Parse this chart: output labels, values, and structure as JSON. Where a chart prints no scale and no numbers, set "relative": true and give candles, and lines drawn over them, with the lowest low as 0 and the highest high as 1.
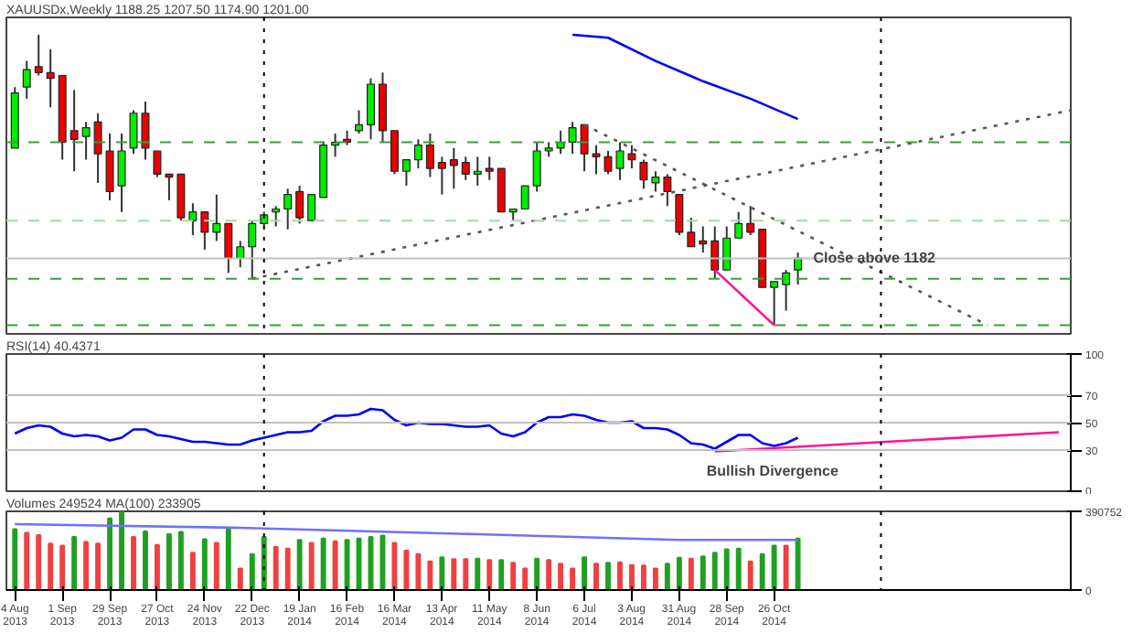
{
  "chart_data": [
    {
      "type": "candlestick",
      "title": "XAUUSDx,Weekly 1188.25 1207.50 1174.90 1201.00",
      "relative": true,
      "tick_labels": false,
      "xlim": [
        "2013-07-30",
        "2015-04-19"
      ],
      "x": [
        "2013-08-04",
        "2013-08-11",
        "2013-08-18",
        "2013-08-25",
        "2013-09-01",
        "2013-09-08",
        "2013-09-15",
        "2013-09-22",
        "2013-09-29",
        "2013-10-06",
        "2013-10-13",
        "2013-10-20",
        "2013-10-27",
        "2013-11-03",
        "2013-11-10",
        "2013-11-17",
        "2013-11-24",
        "2013-12-01",
        "2013-12-08",
        "2013-12-15",
        "2013-12-22",
        "2013-12-29",
        "2014-01-05",
        "2014-01-12",
        "2014-01-19",
        "2014-01-26",
        "2014-02-02",
        "2014-02-09",
        "2014-02-16",
        "2014-02-23",
        "2014-03-02",
        "2014-03-09",
        "2014-03-16",
        "2014-03-23",
        "2014-03-30",
        "2014-04-06",
        "2014-04-13",
        "2014-04-20",
        "2014-04-27",
        "2014-05-04",
        "2014-05-11",
        "2014-05-18",
        "2014-05-25",
        "2014-06-01",
        "2014-06-08",
        "2014-06-15",
        "2014-06-22",
        "2014-06-29",
        "2014-07-06",
        "2014-07-13",
        "2014-07-20",
        "2014-07-27",
        "2014-08-03",
        "2014-08-10",
        "2014-08-17",
        "2014-08-24",
        "2014-08-31",
        "2014-09-07",
        "2014-09-14",
        "2014-09-21",
        "2014-09-28",
        "2014-10-05",
        "2014-10-12",
        "2014-10-19",
        "2014-10-26",
        "2014-11-02",
        "2014-11-09"
      ],
      "ohlc": [
        [
          0.61,
          0.82,
          0.61,
          0.8
        ],
        [
          0.82,
          0.91,
          0.78,
          0.88
        ],
        [
          0.89,
          1,
          0.86,
          0.87
        ],
        [
          0.87,
          0.95,
          0.75,
          0.85
        ],
        [
          0.86,
          0.86,
          0.57,
          0.63
        ],
        [
          0.67,
          0.81,
          0.53,
          0.64
        ],
        [
          0.65,
          0.7,
          0.57,
          0.68
        ],
        [
          0.7,
          0.73,
          0.49,
          0.59
        ],
        [
          0.6,
          0.66,
          0.43,
          0.46
        ],
        [
          0.48,
          0.66,
          0.39,
          0.6
        ],
        [
          0.61,
          0.74,
          0.59,
          0.73
        ],
        [
          0.73,
          0.77,
          0.57,
          0.61
        ],
        [
          0.6,
          0.6,
          0.51,
          0.52
        ],
        [
          0.52,
          0.52,
          0.43,
          0.51
        ],
        [
          0.52,
          0.52,
          0.36,
          0.37
        ],
        [
          0.36,
          0.42,
          0.31,
          0.39
        ],
        [
          0.39,
          0.39,
          0.26,
          0.32
        ],
        [
          0.32,
          0.45,
          0.29,
          0.35
        ],
        [
          0.35,
          0.35,
          0.18,
          0.23
        ],
        [
          0.23,
          0.29,
          0.2,
          0.27
        ],
        [
          0.27,
          0.36,
          0.16,
          0.35
        ],
        [
          0.35,
          0.39,
          0.34,
          0.38
        ],
        [
          0.39,
          0.41,
          0.34,
          0.4
        ],
        [
          0.4,
          0.47,
          0.33,
          0.45
        ],
        [
          0.46,
          0.48,
          0.35,
          0.37
        ],
        [
          0.36,
          0.45,
          0.36,
          0.45
        ],
        [
          0.44,
          0.63,
          0.44,
          0.62
        ],
        [
          0.62,
          0.66,
          0.58,
          0.63
        ],
        [
          0.64,
          0.67,
          0.62,
          0.63
        ],
        [
          0.67,
          0.74,
          0.66,
          0.69
        ],
        [
          0.69,
          0.85,
          0.64,
          0.83
        ],
        [
          0.83,
          0.87,
          0.63,
          0.67
        ],
        [
          0.67,
          0.67,
          0.52,
          0.53
        ],
        [
          0.53,
          0.57,
          0.48,
          0.57
        ],
        [
          0.57,
          0.64,
          0.54,
          0.62
        ],
        [
          0.62,
          0.66,
          0.51,
          0.54
        ],
        [
          0.56,
          0.58,
          0.45,
          0.54
        ],
        [
          0.57,
          0.61,
          0.47,
          0.55
        ],
        [
          0.56,
          0.58,
          0.5,
          0.52
        ],
        [
          0.52,
          0.58,
          0.48,
          0.53
        ],
        [
          0.54,
          0.58,
          0.5,
          0.53
        ],
        [
          0.54,
          0.54,
          0.39,
          0.39
        ],
        [
          0.39,
          0.4,
          0.36,
          0.4
        ],
        [
          0.4,
          0.48,
          0.4,
          0.48
        ],
        [
          0.48,
          0.63,
          0.46,
          0.6
        ],
        [
          0.6,
          0.63,
          0.58,
          0.61
        ],
        [
          0.61,
          0.67,
          0.59,
          0.63
        ],
        [
          0.63,
          0.7,
          0.59,
          0.68
        ],
        [
          0.69,
          0.69,
          0.53,
          0.59
        ],
        [
          0.59,
          0.62,
          0.52,
          0.58
        ],
        [
          0.58,
          0.6,
          0.52,
          0.53
        ],
        [
          0.54,
          0.63,
          0.5,
          0.6
        ],
        [
          0.59,
          0.62,
          0.54,
          0.57
        ],
        [
          0.56,
          0.57,
          0.47,
          0.5
        ],
        [
          0.49,
          0.53,
          0.46,
          0.51
        ],
        [
          0.51,
          0.52,
          0.41,
          0.46
        ],
        [
          0.45,
          0.45,
          0.31,
          0.32
        ],
        [
          0.32,
          0.37,
          0.27,
          0.27
        ],
        [
          0.29,
          0.34,
          0.25,
          0.28
        ],
        [
          0.29,
          0.34,
          0.16,
          0.19
        ],
        [
          0.19,
          0.34,
          0.19,
          0.3
        ],
        [
          0.3,
          0.39,
          0.3,
          0.35
        ],
        [
          0.35,
          0.41,
          0.31,
          0.32
        ],
        [
          0.33,
          0.33,
          0.13,
          0.13
        ],
        [
          0.13,
          0.15,
          0,
          0.15
        ],
        [
          0.14,
          0.19,
          0.05,
          0.18
        ],
        [
          0.19,
          0.25,
          0.14,
          0.23
        ]
      ],
      "colors": [
        "#00ee00",
        "#00ee00",
        "#ee0000",
        "#ee0000",
        "#ee0000",
        "#ee0000",
        "#00ee00",
        "#ee0000",
        "#ee0000",
        "#00ee00",
        "#00ee00",
        "#ee0000",
        "#ee0000",
        "#ee0000",
        "#ee0000",
        "#00ee00",
        "#ee0000",
        "#00ee00",
        "#ee0000",
        "#00ee00",
        "#00ee00",
        "#00ee00",
        "#00ee00",
        "#00ee00",
        "#ee0000",
        "#00ee00",
        "#00ee00",
        "#00ee00",
        "#ee0000",
        "#00ee00",
        "#00ee00",
        "#ee0000",
        "#ee0000",
        "#00ee00",
        "#00ee00",
        "#ee0000",
        "#ee0000",
        "#ee0000",
        "#ee0000",
        "#00ee00",
        "#ee0000",
        "#ee0000",
        "#00ee00",
        "#00ee00",
        "#00ee00",
        "#00ee00",
        "#00ee00",
        "#00ee00",
        "#ee0000",
        "#ee0000",
        "#ee0000",
        "#00ee00",
        "#ee0000",
        "#ee0000",
        "#00ee00",
        "#ee0000",
        "#ee0000",
        "#ee0000",
        "#ee0000",
        "#ee0000",
        "#00ee00",
        "#00ee00",
        "#ee0000",
        "#ee0000",
        "#00ee00",
        "#00ee00",
        "#00ee00"
      ],
      "series": [
        {
          "type": "line",
          "x": [
            "2013-12-22",
            "2015-04-19"
          ],
          "values": [
            0.16,
            0.74
          ],
          "color": "#555555",
          "line_style": "dotted"
        },
        {
          "type": "line",
          "x": [
            "2014-07-06",
            "2015-03-01"
          ],
          "values": [
            0.69,
            0
          ],
          "color": "#555555",
          "line_style": "dotted"
        },
        {
          "type": "line",
          "x": [
            "2014-09-21",
            "2014-10-26"
          ],
          "values": [
            0.19,
            0
          ],
          "color": "#ff1493",
          "line_style": "solid"
        },
        {
          "type": "line",
          "x": [
            "2014-06-29",
            "2014-07-20",
            "2014-08-17",
            "2014-09-14",
            "2014-10-12",
            "2014-11-09"
          ],
          "values": [
            1,
            0.99,
            0.91,
            0.84,
            0.78,
            0.71
          ],
          "color": "#0000ff",
          "line_style": "solid"
        }
      ],
      "ref_lines": [
        {
          "axis": "y",
          "value": 0.63,
          "color": "#3c9c3c",
          "line_style": "dashed"
        },
        {
          "axis": "y",
          "value": 0.36,
          "color": "#a8d8a8",
          "line_style": "dashed"
        },
        {
          "axis": "y",
          "value": 0.16,
          "color": "#3c9c3c",
          "line_style": "dashed"
        },
        {
          "axis": "y",
          "value": 0,
          "color": "#3c9c3c",
          "line_style": "dashed"
        },
        {
          "axis": "y",
          "value": 0.23,
          "color": "#c0c0c0",
          "line_style": "solid"
        },
        {
          "axis": "x",
          "value": "2013-12-29",
          "color": "#000000",
          "line_style": "dotted"
        },
        {
          "axis": "x",
          "value": "2014-12-28",
          "color": "#000000",
          "line_style": "dotted"
        }
      ],
      "annotations": [
        "Close above 1182"
      ]
    },
    {
      "type": "line",
      "title": "RSI(14) 40.4371",
      "tick_labels": "y",
      "xlim": [
        "2013-07-30",
        "2015-04-19"
      ],
      "ylim": [
        0,
        100
      ],
      "yticks": [
        0,
        30,
        50,
        70,
        100
      ],
      "x": [
        "2013-08-04",
        "2013-08-11",
        "2013-08-18",
        "2013-08-25",
        "2013-09-01",
        "2013-09-08",
        "2013-09-15",
        "2013-09-22",
        "2013-09-29",
        "2013-10-06",
        "2013-10-13",
        "2013-10-20",
        "2013-10-27",
        "2013-11-03",
        "2013-11-10",
        "2013-11-17",
        "2013-11-24",
        "2013-12-01",
        "2013-12-08",
        "2013-12-15",
        "2013-12-22",
        "2013-12-29",
        "2014-01-05",
        "2014-01-12",
        "2014-01-19",
        "2014-01-26",
        "2014-02-02",
        "2014-02-09",
        "2014-02-16",
        "2014-02-23",
        "2014-03-02",
        "2014-03-09",
        "2014-03-16",
        "2014-03-23",
        "2014-03-30",
        "2014-04-06",
        "2014-04-13",
        "2014-04-20",
        "2014-04-27",
        "2014-05-04",
        "2014-05-11",
        "2014-05-18",
        "2014-05-25",
        "2014-06-01",
        "2014-06-08",
        "2014-06-15",
        "2014-06-22",
        "2014-06-29",
        "2014-07-06",
        "2014-07-13",
        "2014-07-20",
        "2014-07-27",
        "2014-08-03",
        "2014-08-10",
        "2014-08-17",
        "2014-08-24",
        "2014-08-31",
        "2014-09-07",
        "2014-09-14",
        "2014-09-21",
        "2014-09-28",
        "2014-10-05",
        "2014-10-12",
        "2014-10-19",
        "2014-10-26",
        "2014-11-02",
        "2014-11-09"
      ],
      "series": [
        {
          "color": "#0000ff",
          "values": [
            42,
            46,
            48,
            47,
            42,
            40,
            41,
            40,
            37,
            39,
            45,
            45,
            41,
            40,
            38,
            36,
            36,
            35,
            34,
            34,
            37,
            39,
            41,
            43,
            43,
            44,
            51,
            55,
            55,
            56,
            60,
            59,
            52,
            48,
            50,
            49,
            49,
            48,
            47,
            47,
            48,
            42,
            40,
            43,
            50,
            54,
            54,
            56,
            55,
            52,
            50,
            50,
            51,
            46,
            46,
            45,
            41,
            35,
            34,
            31,
            36,
            41,
            41,
            35,
            33,
            35,
            39
          ]
        },
        {
          "color": "#ff1493",
          "x": [
            "2014-09-21",
            "2015-04-12"
          ],
          "values": [
            29,
            43
          ]
        }
      ],
      "ref_lines": [
        {
          "axis": "y",
          "value": 70,
          "color": "#c0c0c0",
          "line_style": "solid"
        },
        {
          "axis": "y",
          "value": 50,
          "color": "#c0c0c0",
          "line_style": "solid"
        },
        {
          "axis": "y",
          "value": 30,
          "color": "#c0c0c0",
          "line_style": "solid"
        },
        {
          "axis": "x",
          "value": "2013-12-29",
          "color": "#000000",
          "line_style": "dotted"
        },
        {
          "axis": "x",
          "value": "2014-12-28",
          "color": "#000000",
          "line_style": "dotted"
        }
      ],
      "annotations": [
        {
          "text": "Bullish Divergence",
          "x": "2014-09-14",
          "y": 29
        }
      ]
    },
    {
      "type": "bar",
      "title": "Volumes 249524  MA(100) 233905",
      "xlim": [
        "2013-07-30",
        "2015-04-19"
      ],
      "ylim": [
        0,
        390752
      ],
      "yticks": [
        0,
        390752
      ],
      "xticks": [
        {
          "value": "2013-08-04",
          "label": "4 Aug 2013"
        },
        {
          "value": "2013-09-01",
          "label": "1 Sep 2013"
        },
        {
          "value": "2013-09-29",
          "label": "29 Sep 2013"
        },
        {
          "value": "2013-10-27",
          "label": "27 Oct 2013"
        },
        {
          "value": "2013-11-24",
          "label": "24 Nov 2013"
        },
        {
          "value": "2013-12-22",
          "label": "22 Dec 2013"
        },
        {
          "value": "2014-01-19",
          "label": "19 Jan 2014"
        },
        {
          "value": "2014-02-16",
          "label": "16 Feb 2014"
        },
        {
          "value": "2014-03-16",
          "label": "16 Mar 2014"
        },
        {
          "value": "2014-04-13",
          "label": "13 Apr 2014"
        },
        {
          "value": "2014-05-11",
          "label": "11 May 2014"
        },
        {
          "value": "2014-06-08",
          "label": "8 Jun 2014"
        },
        {
          "value": "2014-07-06",
          "label": "6 Jul 2014"
        },
        {
          "value": "2014-08-03",
          "label": "3 Aug 2014"
        },
        {
          "value": "2014-08-31",
          "label": "31 Aug 2014"
        },
        {
          "value": "2014-09-28",
          "label": "28 Sep 2014"
        },
        {
          "value": "2014-10-26",
          "label": "26 Oct 2014"
        }
      ],
      "x": [
        "2013-08-04",
        "2013-08-11",
        "2013-08-18",
        "2013-08-25",
        "2013-09-01",
        "2013-09-08",
        "2013-09-15",
        "2013-09-22",
        "2013-09-29",
        "2013-10-06",
        "2013-10-13",
        "2013-10-20",
        "2013-10-27",
        "2013-11-03",
        "2013-11-10",
        "2013-11-17",
        "2013-11-24",
        "2013-12-01",
        "2013-12-08",
        "2013-12-15",
        "2013-12-22",
        "2013-12-29",
        "2014-01-05",
        "2014-01-12",
        "2014-01-19",
        "2014-01-26",
        "2014-02-02",
        "2014-02-09",
        "2014-02-16",
        "2014-02-23",
        "2014-03-02",
        "2014-03-09",
        "2014-03-16",
        "2014-03-23",
        "2014-03-30",
        "2014-04-06",
        "2014-04-13",
        "2014-04-20",
        "2014-04-27",
        "2014-05-04",
        "2014-05-11",
        "2014-05-18",
        "2014-05-25",
        "2014-06-01",
        "2014-06-08",
        "2014-06-15",
        "2014-06-22",
        "2014-06-29",
        "2014-07-06",
        "2014-07-13",
        "2014-07-20",
        "2014-07-27",
        "2014-08-03",
        "2014-08-10",
        "2014-08-17",
        "2014-08-24",
        "2014-08-31",
        "2014-09-07",
        "2014-09-14",
        "2014-09-21",
        "2014-09-28",
        "2014-10-05",
        "2014-10-12",
        "2014-10-19",
        "2014-10-26",
        "2014-11-02",
        "2014-11-09"
      ],
      "values": [
        302000,
        284000,
        273000,
        231000,
        220000,
        263000,
        238000,
        231000,
        355000,
        390000,
        263000,
        291000,
        224000,
        277000,
        288000,
        185000,
        252000,
        234000,
        302000,
        107000,
        178000,
        263000,
        213000,
        206000,
        249000,
        234000,
        256000,
        242000,
        249000,
        256000,
        263000,
        270000,
        234000,
        195000,
        178000,
        142000,
        163000,
        153000,
        153000,
        156000,
        149000,
        149000,
        135000,
        107000,
        156000,
        149000,
        131000,
        107000,
        163000,
        131000,
        135000,
        138000,
        124000,
        121000,
        107000,
        131000,
        160000,
        156000,
        167000,
        185000,
        202000,
        206000,
        142000,
        178000,
        220000,
        220000,
        256000
      ],
      "colors": [
        "#20a020",
        "#f04040",
        "#f04040",
        "#f04040",
        "#f04040",
        "#20a020",
        "#f04040",
        "#f04040",
        "#20a020",
        "#20a020",
        "#f04040",
        "#20a020",
        "#f04040",
        "#20a020",
        "#20a020",
        "#f04040",
        "#20a020",
        "#f04040",
        "#20a020",
        "#f04040",
        "#20a020",
        "#20a020",
        "#f04040",
        "#f04040",
        "#20a020",
        "#f04040",
        "#20a020",
        "#f04040",
        "#20a020",
        "#20a020",
        "#20a020",
        "#20a020",
        "#f04040",
        "#f04040",
        "#f04040",
        "#f04040",
        "#20a020",
        "#f04040",
        "#f04040",
        "#20a020",
        "#f04040",
        "#20a020",
        "#f04040",
        "#f04040",
        "#20a020",
        "#f04040",
        "#f04040",
        "#f04040",
        "#20a020",
        "#f04040",
        "#20a020",
        "#f04040",
        "#f04040",
        "#f04040",
        "#f04040",
        "#20a020",
        "#20a020",
        "#f04040",
        "#20a020",
        "#20a020",
        "#20a020",
        "#20a020",
        "#f04040",
        "#20a020",
        "#20a020",
        "#f04040",
        "#20a020"
      ],
      "series": [
        {
          "type": "line",
          "color": "#7070ff",
          "x": [
            "2013-08-04",
            "2013-12-15",
            "2014-05-04",
            "2014-08-31",
            "2014-11-09"
          ],
          "values": [
            327000,
            309000,
            277000,
            249000,
            249000
          ]
        }
      ],
      "ref_lines": [
        {
          "axis": "x",
          "value": "2013-12-29",
          "color": "#000000",
          "line_style": "dotted"
        },
        {
          "axis": "x",
          "value": "2014-12-28",
          "color": "#000000",
          "line_style": "dotted"
        }
      ]
    }
  ]
}
